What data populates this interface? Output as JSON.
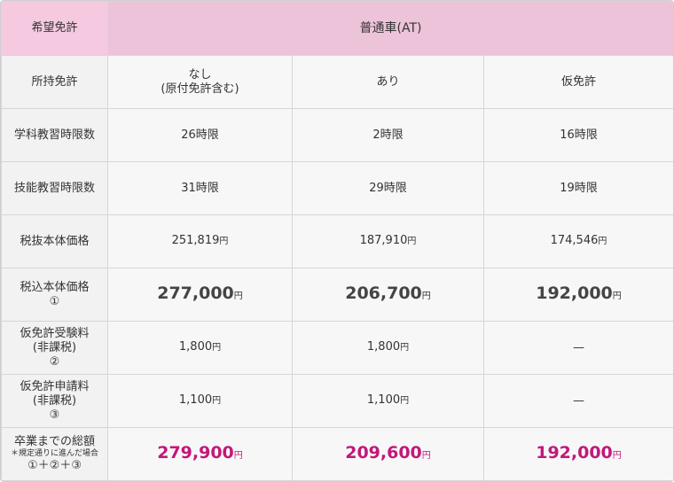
{
  "header": {
    "label": "希望免許",
    "car_type": "普通車(AT)"
  },
  "license_row": {
    "label": "所持免許",
    "cols": [
      {
        "line1": "なし",
        "line2": "(原付免許含む)"
      },
      {
        "line1": "あり",
        "line2": ""
      },
      {
        "line1": "仮免許",
        "line2": ""
      }
    ]
  },
  "rows": {
    "academic": {
      "label": "学科教習時限数",
      "values": [
        "26時限",
        "2時限",
        "16時限"
      ]
    },
    "skills": {
      "label": "技能教習時限数",
      "values": [
        "31時限",
        "29時限",
        "19時限"
      ]
    },
    "pretax": {
      "label": "税抜本体価格",
      "values": [
        "251,819",
        "187,910",
        "174,546"
      ],
      "unit": "円"
    },
    "taxin": {
      "label": "税込本体価格",
      "mark": "①",
      "values": [
        "277,000",
        "206,700",
        "192,000"
      ],
      "unit": "円"
    },
    "exam_fee": {
      "label": "仮免許受験料",
      "sub": "(非課税)",
      "mark": "②",
      "values": [
        "1,800",
        "1,800",
        "—"
      ],
      "unit": "円"
    },
    "apply_fee": {
      "label": "仮免許申請料",
      "sub": "(非課税)",
      "mark": "③",
      "values": [
        "1,100",
        "1,100",
        "—"
      ],
      "unit": "円"
    },
    "total": {
      "label": "卒業までの総額",
      "note": "＊規定通りに進んだ場合",
      "formula": "①＋②＋③",
      "values": [
        "279,900",
        "209,600",
        "192,000"
      ],
      "unit": "円"
    }
  },
  "colors": {
    "header_label_bg": "#f5c9e0",
    "header_car_bg": "#edc3d9",
    "total_text": "#c2187a"
  }
}
